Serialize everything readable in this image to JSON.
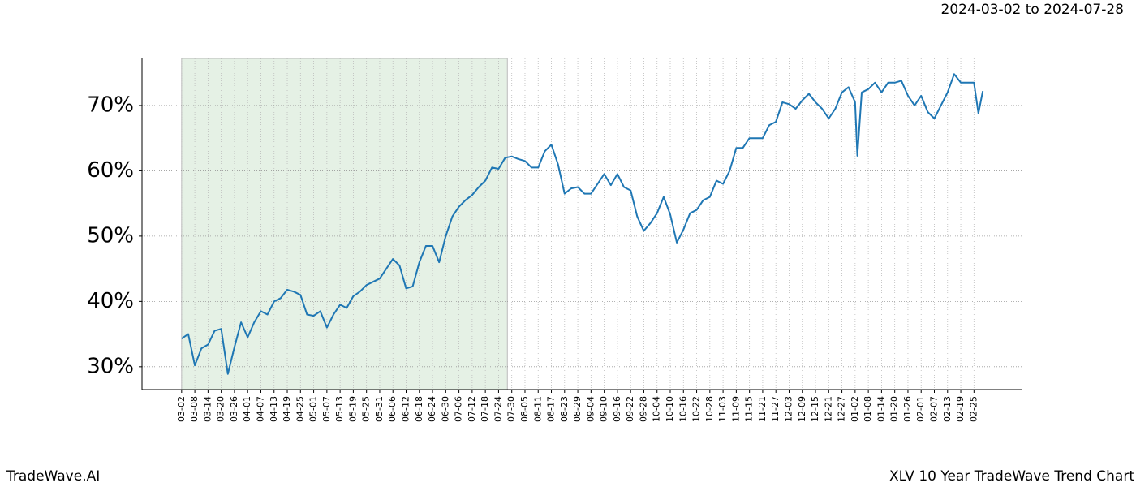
{
  "chart_data": {
    "type": "line",
    "title": "XLV 10 Year TradeWave Trend Chart",
    "subtitle": "2024-03-02 to 2024-07-28",
    "brand": "TradeWave.AI",
    "highlight": [
      0,
      148
    ],
    "highlight_color": "#e5f1e5",
    "color": "#1f77b4",
    "grid": true,
    "xlim": [
      -18,
      382
    ],
    "ylim": [
      26.5,
      77.2
    ],
    "yticks": [
      {
        "value": 30,
        "label": "30%"
      },
      {
        "value": 40,
        "label": "40%"
      },
      {
        "value": 50,
        "label": "50%"
      },
      {
        "value": 60,
        "label": "60%"
      },
      {
        "value": 70,
        "label": "70%"
      }
    ],
    "xticks": [
      {
        "value": 0,
        "label": "03-02"
      },
      {
        "value": 6,
        "label": "03-08"
      },
      {
        "value": 12,
        "label": "03-14"
      },
      {
        "value": 18,
        "label": "03-20"
      },
      {
        "value": 24,
        "label": "03-26"
      },
      {
        "value": 30,
        "label": "04-01"
      },
      {
        "value": 36,
        "label": "04-07"
      },
      {
        "value": 42,
        "label": "04-13"
      },
      {
        "value": 48,
        "label": "04-19"
      },
      {
        "value": 54,
        "label": "04-25"
      },
      {
        "value": 60,
        "label": "05-01"
      },
      {
        "value": 66,
        "label": "05-07"
      },
      {
        "value": 72,
        "label": "05-13"
      },
      {
        "value": 78,
        "label": "05-19"
      },
      {
        "value": 84,
        "label": "05-25"
      },
      {
        "value": 90,
        "label": "05-31"
      },
      {
        "value": 96,
        "label": "06-06"
      },
      {
        "value": 102,
        "label": "06-12"
      },
      {
        "value": 108,
        "label": "06-18"
      },
      {
        "value": 114,
        "label": "06-24"
      },
      {
        "value": 120,
        "label": "06-30"
      },
      {
        "value": 126,
        "label": "07-06"
      },
      {
        "value": 132,
        "label": "07-12"
      },
      {
        "value": 138,
        "label": "07-18"
      },
      {
        "value": 144,
        "label": "07-24"
      },
      {
        "value": 150,
        "label": "07-30"
      },
      {
        "value": 156,
        "label": "08-05"
      },
      {
        "value": 162,
        "label": "08-11"
      },
      {
        "value": 168,
        "label": "08-17"
      },
      {
        "value": 174,
        "label": "08-23"
      },
      {
        "value": 180,
        "label": "08-29"
      },
      {
        "value": 186,
        "label": "09-04"
      },
      {
        "value": 192,
        "label": "09-10"
      },
      {
        "value": 198,
        "label": "09-16"
      },
      {
        "value": 204,
        "label": "09-22"
      },
      {
        "value": 210,
        "label": "09-28"
      },
      {
        "value": 216,
        "label": "10-04"
      },
      {
        "value": 222,
        "label": "10-10"
      },
      {
        "value": 228,
        "label": "10-16"
      },
      {
        "value": 234,
        "label": "10-22"
      },
      {
        "value": 240,
        "label": "10-28"
      },
      {
        "value": 246,
        "label": "11-03"
      },
      {
        "value": 252,
        "label": "11-09"
      },
      {
        "value": 258,
        "label": "11-15"
      },
      {
        "value": 264,
        "label": "11-21"
      },
      {
        "value": 270,
        "label": "11-27"
      },
      {
        "value": 276,
        "label": "12-03"
      },
      {
        "value": 282,
        "label": "12-09"
      },
      {
        "value": 288,
        "label": "12-15"
      },
      {
        "value": 294,
        "label": "12-21"
      },
      {
        "value": 300,
        "label": "12-27"
      },
      {
        "value": 306,
        "label": "01-02"
      },
      {
        "value": 312,
        "label": "01-08"
      },
      {
        "value": 318,
        "label": "01-14"
      },
      {
        "value": 324,
        "label": "01-20"
      },
      {
        "value": 330,
        "label": "01-26"
      },
      {
        "value": 336,
        "label": "02-01"
      },
      {
        "value": 342,
        "label": "02-07"
      },
      {
        "value": 348,
        "label": "02-13"
      },
      {
        "value": 354,
        "label": "02-19"
      },
      {
        "value": 360,
        "label": "02-25"
      }
    ],
    "x": [
      0,
      3,
      6,
      9,
      12,
      15,
      18,
      21,
      24,
      27,
      30,
      33,
      36,
      39,
      42,
      45,
      48,
      51,
      54,
      57,
      60,
      63,
      66,
      69,
      72,
      75,
      78,
      81,
      84,
      87,
      90,
      93,
      96,
      99,
      102,
      105,
      108,
      111,
      114,
      117,
      120,
      123,
      126,
      129,
      132,
      135,
      138,
      141,
      144,
      147,
      150,
      153,
      156,
      159,
      162,
      165,
      168,
      171,
      174,
      177,
      180,
      183,
      186,
      189,
      192,
      195,
      198,
      201,
      204,
      207,
      210,
      213,
      216,
      219,
      222,
      225,
      228,
      231,
      234,
      237,
      240,
      243,
      246,
      249,
      252,
      255,
      258,
      261,
      264,
      267,
      270,
      273,
      276,
      279,
      282,
      285,
      288,
      291,
      294,
      297,
      300,
      303,
      306,
      307,
      309,
      312,
      315,
      318,
      321,
      324,
      327,
      330,
      333,
      336,
      339,
      342,
      345,
      348,
      351,
      354,
      357,
      360,
      362,
      364
    ],
    "values": [
      34.3,
      35,
      30.2,
      32.8,
      33.4,
      35.5,
      35.8,
      28.9,
      33,
      36.8,
      34.5,
      36.8,
      38.5,
      38,
      40,
      40.5,
      41.8,
      41.5,
      41,
      38,
      37.8,
      38.5,
      36,
      38,
      39.5,
      39,
      40.8,
      41.5,
      42.5,
      43,
      43.5,
      45,
      46.5,
      45.5,
      42,
      42.3,
      46,
      48.5,
      48.5,
      46,
      50,
      53,
      54.5,
      55.5,
      56.3,
      57.5,
      58.5,
      60.5,
      60.3,
      62,
      62.2,
      61.8,
      61.5,
      60.5,
      60.5,
      63,
      64,
      61,
      56.5,
      57.3,
      57.5,
      56.5,
      56.5,
      58,
      59.5,
      57.8,
      59.5,
      57.5,
      57,
      53,
      50.8,
      52,
      53.5,
      56,
      53.3,
      49,
      51,
      53.5,
      54,
      55.5,
      56,
      58.5,
      58,
      60,
      63.5,
      63.5,
      65,
      65,
      65,
      67,
      67.5,
      70.5,
      70.2,
      69.5,
      70.8,
      71.8,
      70.5,
      69.5,
      68,
      69.5,
      72,
      72.8,
      70.5,
      62.3,
      72,
      72.5,
      73.5,
      72,
      73.5,
      73.5,
      73.8,
      71.5,
      70,
      71.5,
      69,
      68,
      70,
      72,
      74.8,
      73.5,
      73.5,
      73.5,
      68.8,
      72.2
    ]
  }
}
